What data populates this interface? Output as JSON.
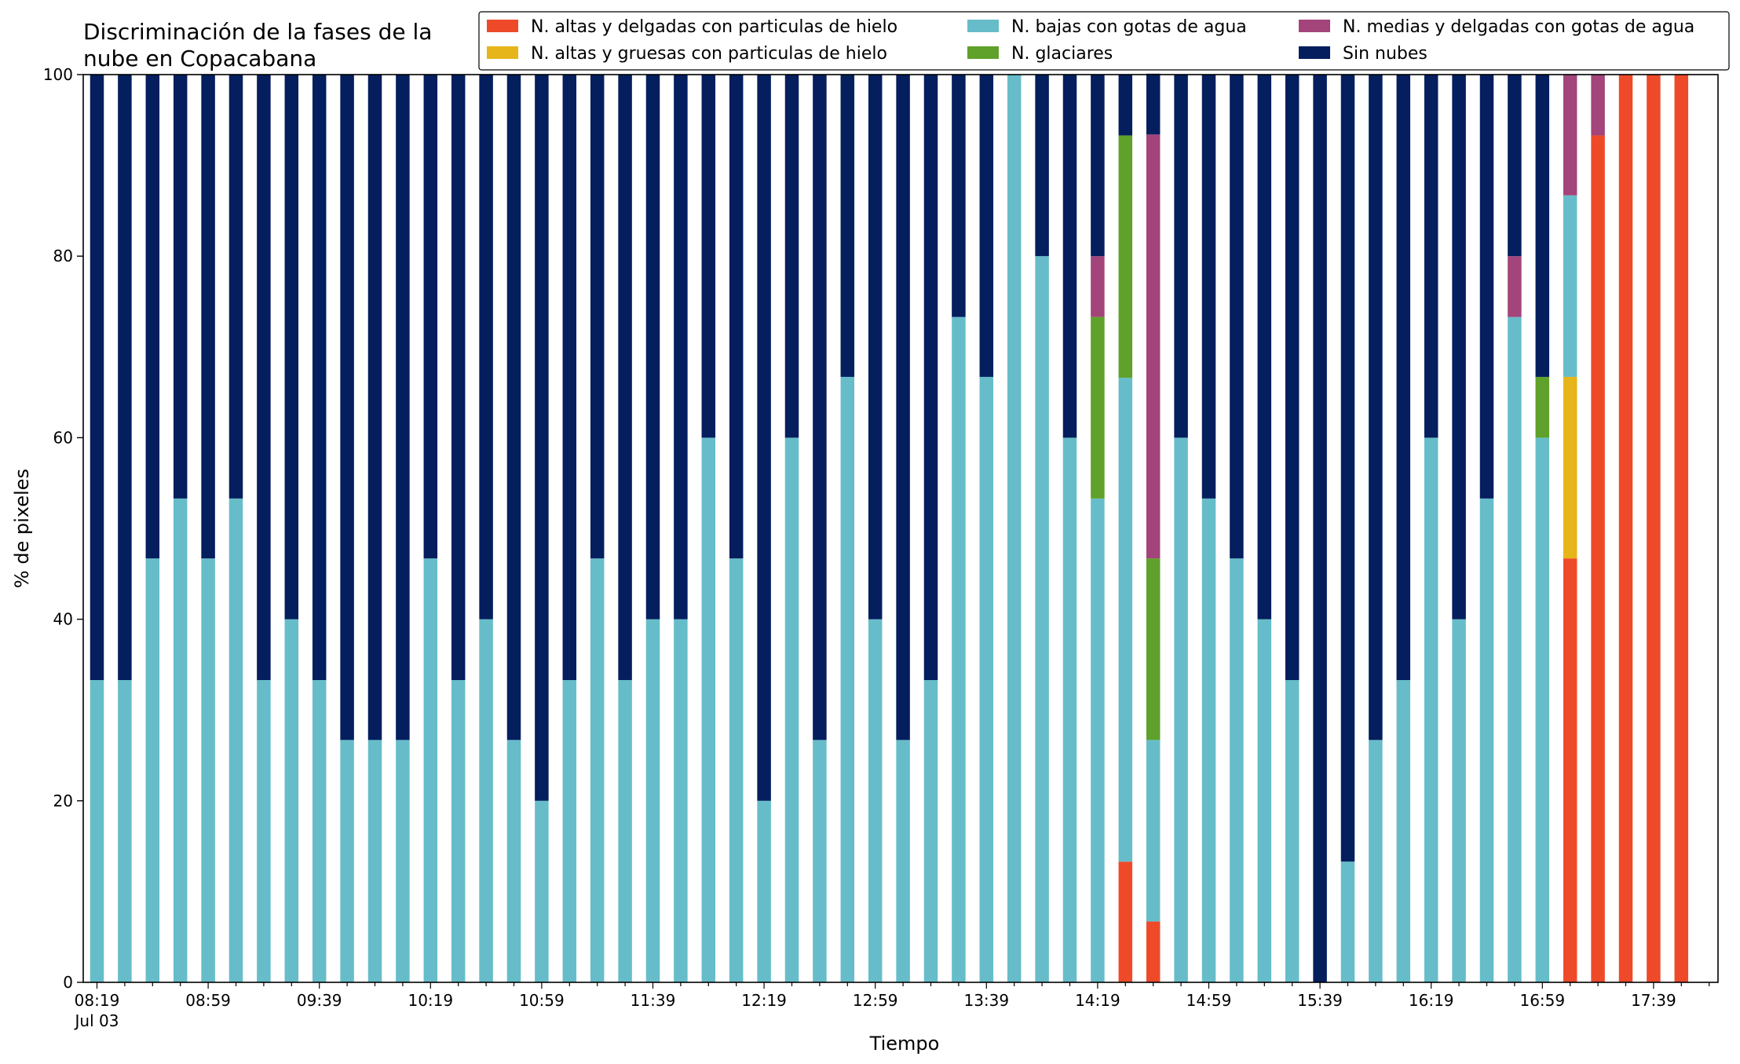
{
  "chart_data": {
    "type": "bar",
    "stacked": true,
    "title_lines": [
      "Discriminación de la fases de la",
      "nube en Copacabana"
    ],
    "xlabel": "Tiempo",
    "ylabel": "% de pixeles",
    "ylim": [
      0,
      100
    ],
    "yticks": [
      0,
      20,
      40,
      60,
      80,
      100
    ],
    "x_tick_labels": [
      "08:19",
      "08:59",
      "09:39",
      "10:19",
      "10:59",
      "11:39",
      "12:19",
      "12:59",
      "13:39",
      "14:19",
      "14:59",
      "15:39",
      "16:19",
      "16:59",
      "17:39"
    ],
    "x_date_label": "Jul 03",
    "grid": false,
    "legend_placement": "top-right",
    "categories": [
      "08:19",
      "08:29",
      "08:39",
      "08:49",
      "08:59",
      "09:09",
      "09:19",
      "09:29",
      "09:39",
      "09:49",
      "09:59",
      "10:09",
      "10:19",
      "10:29",
      "10:39",
      "10:49",
      "10:59",
      "11:09",
      "11:19",
      "11:29",
      "11:39",
      "11:49",
      "11:59",
      "12:09",
      "12:19",
      "12:29",
      "12:39",
      "12:49",
      "12:59",
      "13:09",
      "13:19",
      "13:29",
      "13:39",
      "13:49",
      "13:59",
      "14:09",
      "14:19",
      "14:29",
      "14:39",
      "14:49",
      "14:59",
      "15:09",
      "15:19",
      "15:29",
      "15:39",
      "15:49",
      "15:59",
      "16:09",
      "16:19",
      "16:29",
      "16:39",
      "16:49",
      "16:59",
      "17:09",
      "17:19",
      "17:29",
      "17:39",
      "17:49"
    ],
    "series": [
      {
        "name": "N. altas y delgadas con particulas de hielo",
        "color": "#ee4a2a",
        "values": [
          0,
          0,
          0,
          0,
          0,
          0,
          0,
          0,
          0,
          0,
          0,
          0,
          0,
          0,
          0,
          0,
          0,
          0,
          0,
          0,
          0,
          0,
          0,
          0,
          0,
          0,
          0,
          0,
          0,
          0,
          0,
          0,
          0,
          0,
          0,
          0,
          0,
          13.3,
          6.7,
          0,
          0,
          0,
          0,
          0,
          0,
          0,
          0,
          0,
          0,
          0,
          0,
          0,
          0,
          46.7,
          93.3,
          100,
          100,
          100
        ]
      },
      {
        "name": "N. altas y gruesas con particulas de hielo",
        "color": "#e6b51a",
        "values": [
          0,
          0,
          0,
          0,
          0,
          0,
          0,
          0,
          0,
          0,
          0,
          0,
          0,
          0,
          0,
          0,
          0,
          0,
          0,
          0,
          0,
          0,
          0,
          0,
          0,
          0,
          0,
          0,
          0,
          0,
          0,
          0,
          0,
          0,
          0,
          0,
          0,
          0,
          0,
          0,
          0,
          0,
          0,
          0,
          0,
          0,
          0,
          0,
          0,
          0,
          0,
          0,
          0,
          20,
          0,
          0,
          0,
          0
        ]
      },
      {
        "name": "N. bajas con gotas de agua",
        "color": "#66bdc9",
        "values": [
          33.3,
          33.3,
          46.7,
          53.3,
          46.7,
          53.3,
          33.3,
          40,
          33.3,
          26.7,
          26.7,
          26.7,
          46.7,
          33.3,
          40,
          26.7,
          20,
          33.3,
          46.7,
          33.3,
          40,
          40,
          60,
          46.7,
          20,
          60,
          26.7,
          66.7,
          40,
          26.7,
          33.3,
          73.3,
          66.7,
          100,
          80,
          60,
          53.3,
          53.3,
          20,
          60,
          53.3,
          46.7,
          40,
          33.3,
          0,
          13.3,
          26.7,
          33.3,
          60,
          40,
          53.3,
          73.3,
          60,
          20,
          0,
          0,
          0,
          0
        ]
      },
      {
        "name": "N. glaciares",
        "color": "#5fa12b",
        "values": [
          0,
          0,
          0,
          0,
          0,
          0,
          0,
          0,
          0,
          0,
          0,
          0,
          0,
          0,
          0,
          0,
          0,
          0,
          0,
          0,
          0,
          0,
          0,
          0,
          0,
          0,
          0,
          0,
          0,
          0,
          0,
          0,
          0,
          0,
          0,
          0,
          20,
          26.7,
          20,
          0,
          0,
          0,
          0,
          0,
          0,
          0,
          0,
          0,
          0,
          0,
          0,
          0,
          6.7,
          0,
          0,
          0,
          0,
          0
        ]
      },
      {
        "name": "N. medias y delgadas con gotas de agua",
        "color": "#a3447a",
        "values": [
          0,
          0,
          0,
          0,
          0,
          0,
          0,
          0,
          0,
          0,
          0,
          0,
          0,
          0,
          0,
          0,
          0,
          0,
          0,
          0,
          0,
          0,
          0,
          0,
          0,
          0,
          0,
          0,
          0,
          0,
          0,
          0,
          0,
          0,
          0,
          0,
          6.7,
          0,
          46.7,
          0,
          0,
          0,
          0,
          0,
          0,
          0,
          0,
          0,
          0,
          0,
          0,
          6.7,
          0,
          13.3,
          6.7,
          0,
          0,
          0
        ]
      },
      {
        "name": "Sin nubes",
        "color": "#041e5e",
        "values": [
          66.7,
          66.7,
          53.3,
          46.7,
          53.3,
          46.7,
          66.7,
          60,
          66.7,
          73.3,
          73.3,
          73.3,
          53.3,
          66.7,
          60,
          73.3,
          80,
          66.7,
          53.3,
          66.7,
          60,
          60,
          40,
          53.3,
          80,
          40,
          73.3,
          33.3,
          60,
          73.3,
          66.7,
          26.7,
          33.3,
          0,
          20,
          40,
          20,
          6.7,
          6.7,
          40,
          46.7,
          53.3,
          60,
          66.7,
          100,
          86.7,
          73.3,
          66.7,
          40,
          60,
          46.7,
          20,
          33.3,
          0,
          0,
          0,
          0,
          0
        ]
      }
    ]
  }
}
